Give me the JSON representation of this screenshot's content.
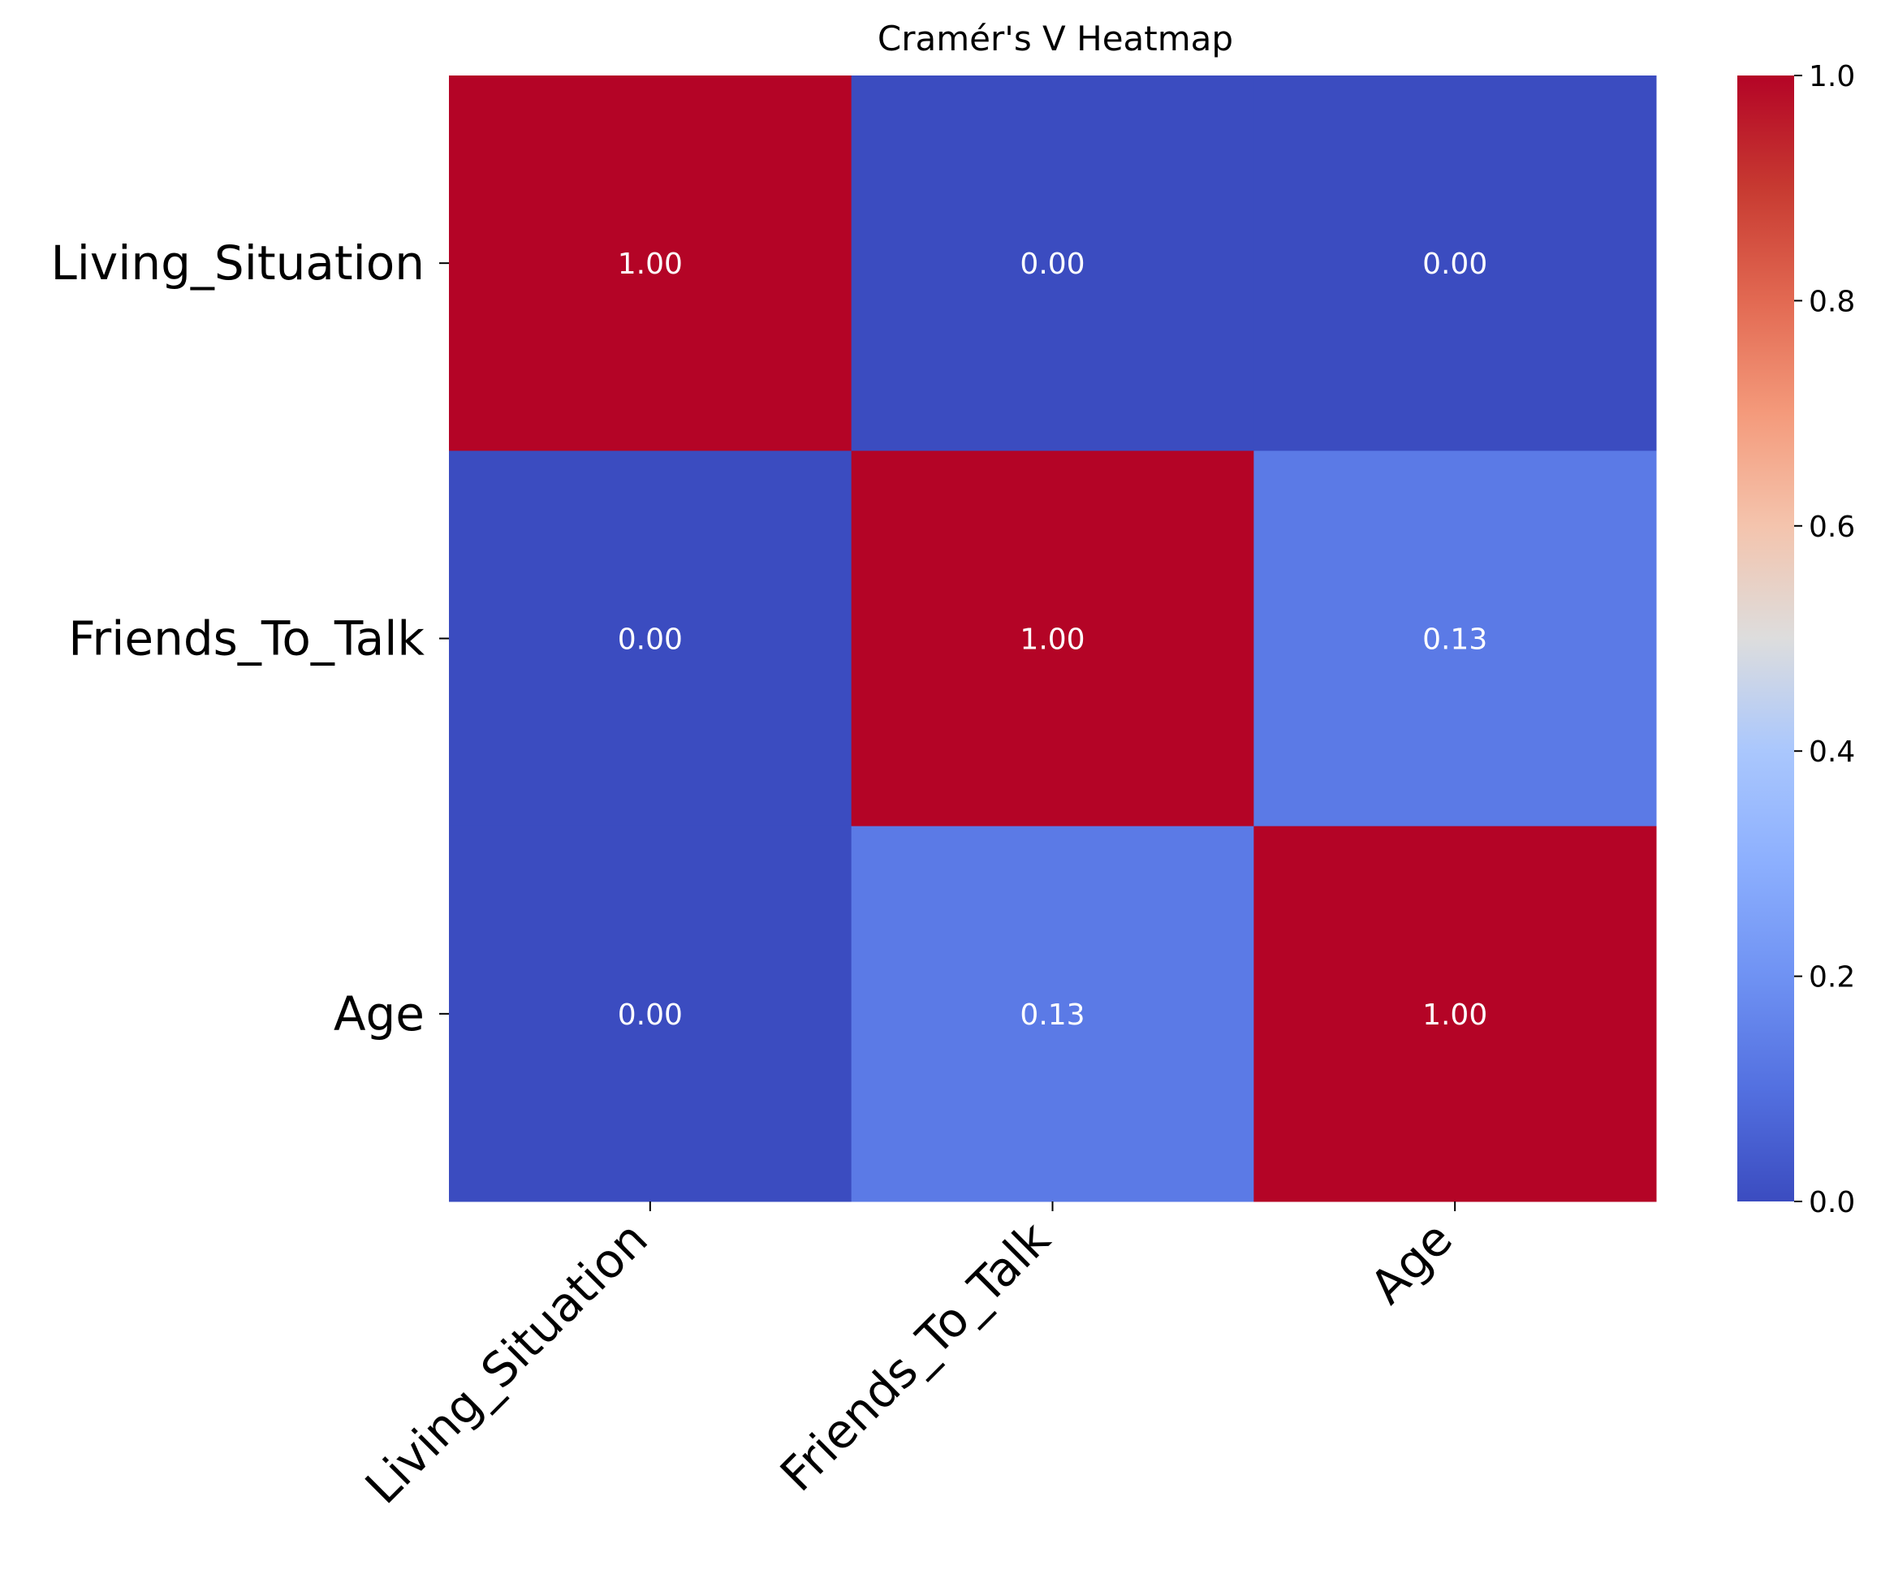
{
  "chart_data": {
    "type": "heatmap",
    "title": "Cramér's V Heatmap",
    "xlabel": "",
    "ylabel": "",
    "x_categories": [
      "Living_Situation",
      "Friends_To_Talk",
      "Age"
    ],
    "y_categories": [
      "Living_Situation",
      "Friends_To_Talk",
      "Age"
    ],
    "values": [
      [
        1.0,
        0.0,
        0.0
      ],
      [
        0.0,
        1.0,
        0.13
      ],
      [
        0.0,
        0.13,
        1.0
      ]
    ],
    "value_format": "2 decimals",
    "colormap": "coolwarm",
    "vmin": 0.0,
    "vmax": 1.0,
    "colorbar_ticks": [
      "0.0",
      "0.2",
      "0.4",
      "0.6",
      "0.8",
      "1.0"
    ],
    "grid": false,
    "colors": {
      "low": "#3b4cc0",
      "high": "#b40426",
      "annotation_text": "#ffffff"
    }
  }
}
